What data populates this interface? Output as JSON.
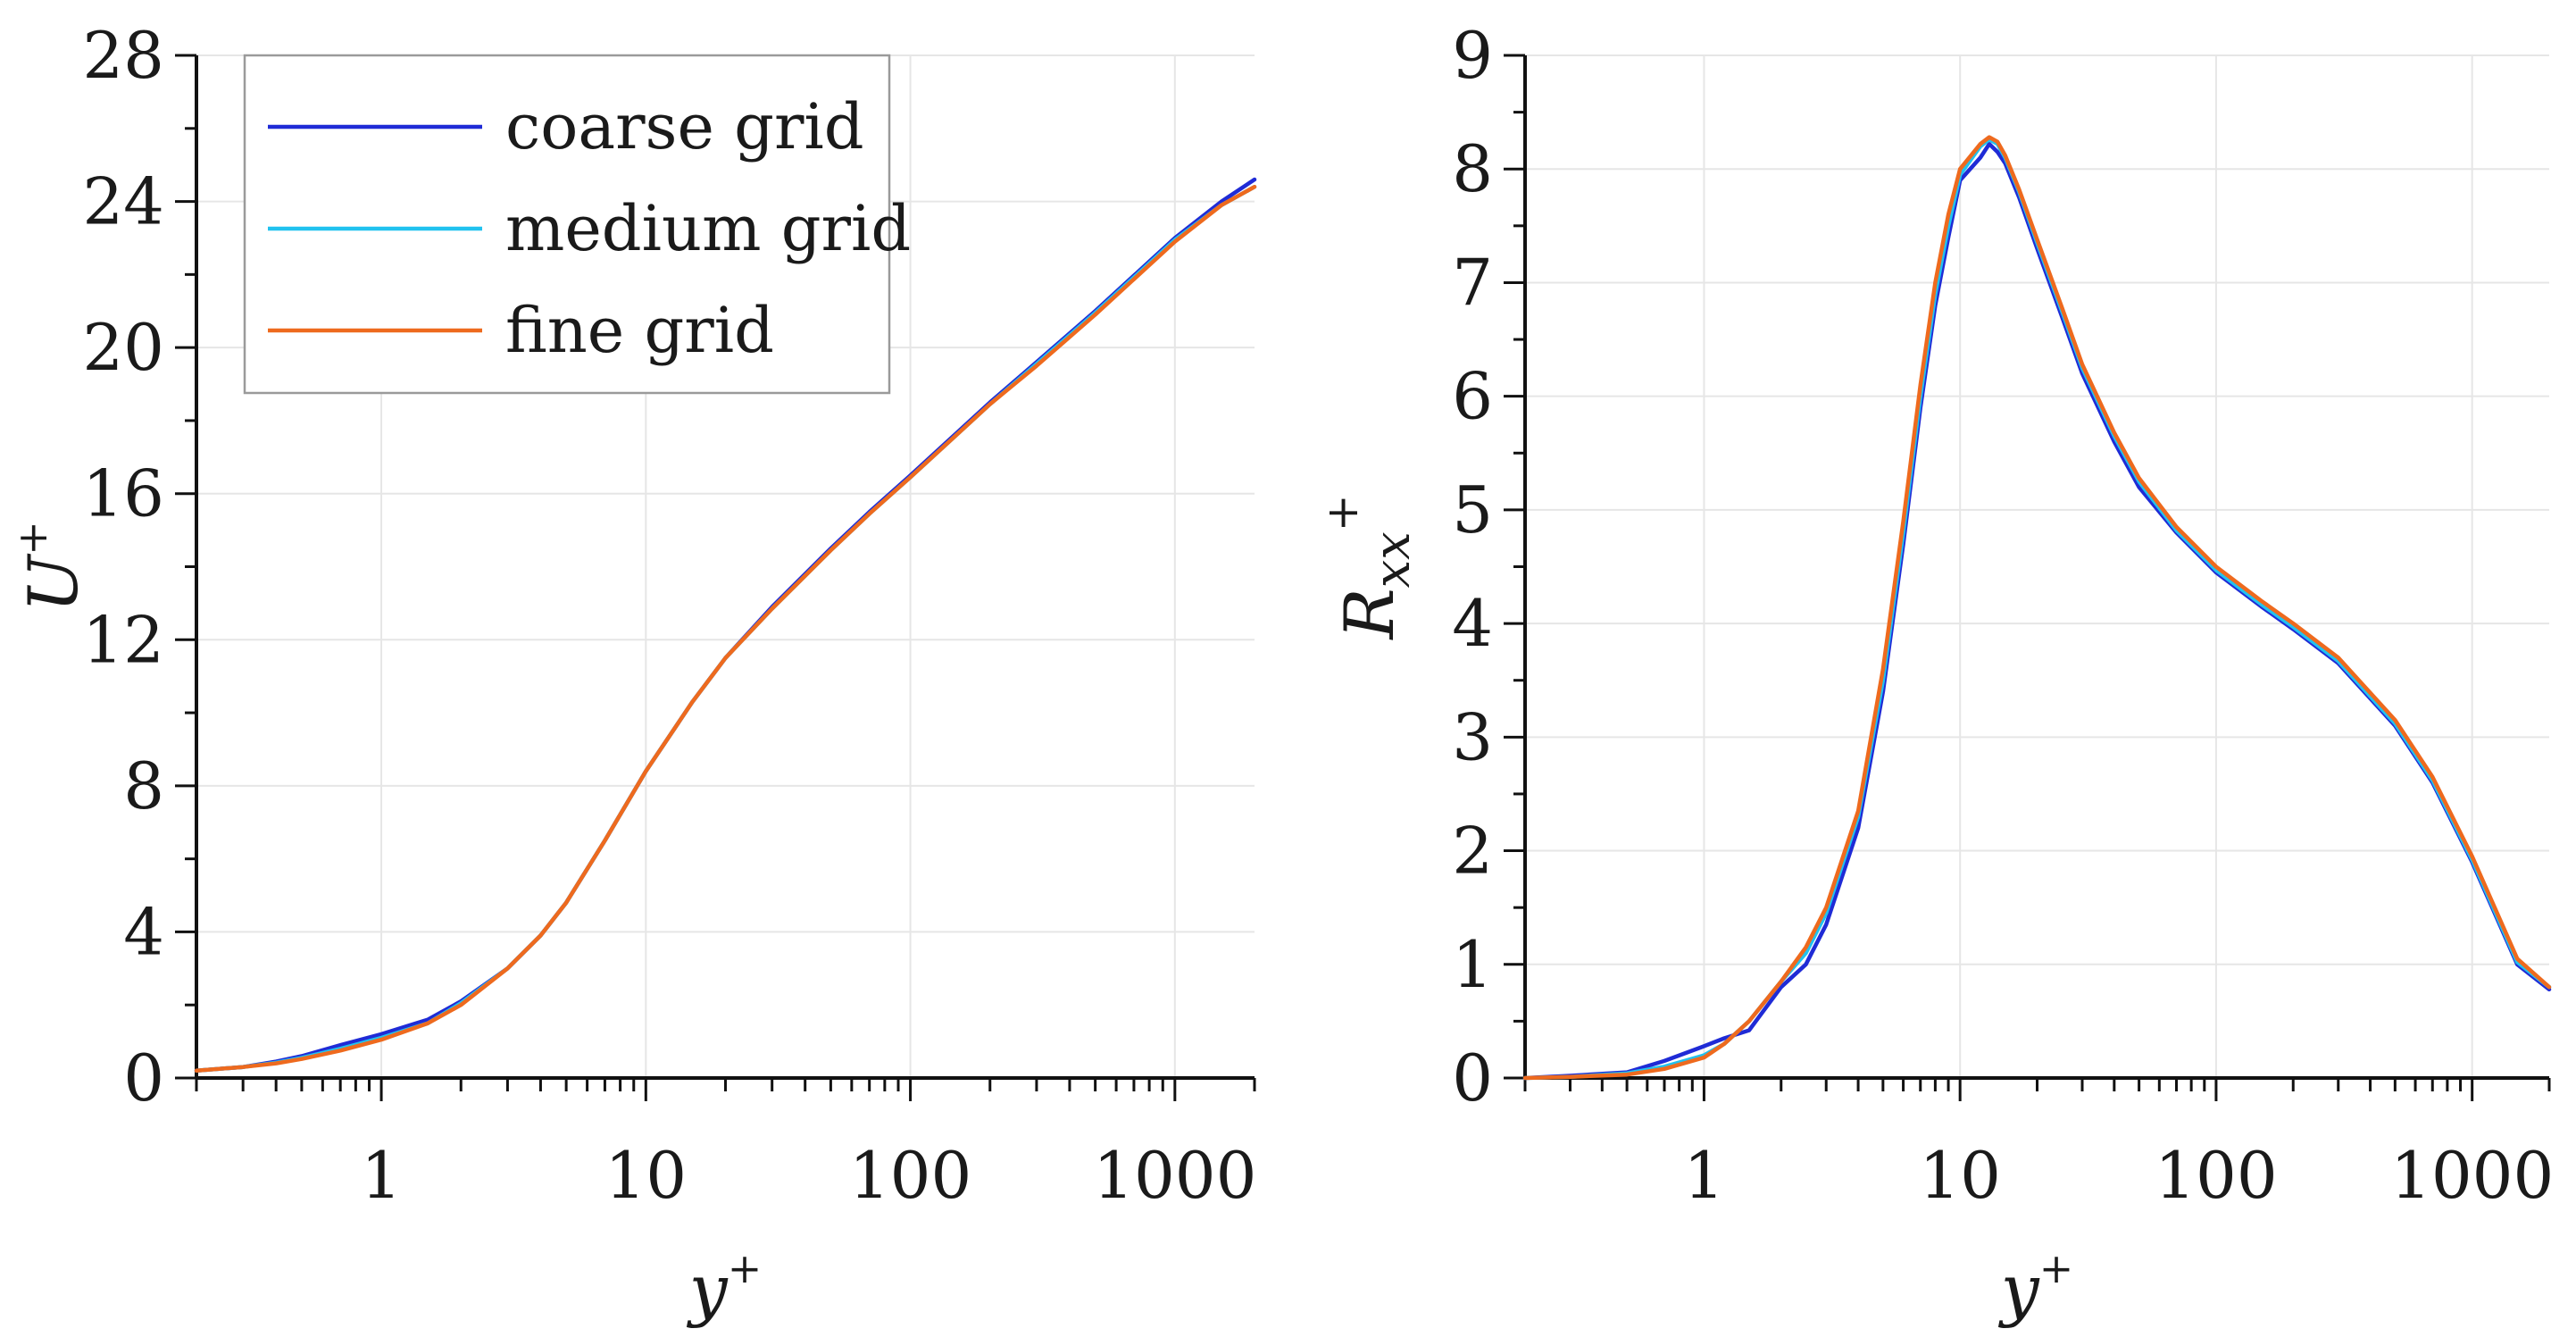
{
  "chart_data": [
    {
      "type": "line",
      "xscale": "log",
      "xlim": [
        0.2,
        2000
      ],
      "ylim": [
        0,
        28
      ],
      "xlabel": "y",
      "xlabel_sup": "+",
      "ylabel": "U",
      "ylabel_sup": "+",
      "x_tick_labels": [
        "1",
        "10",
        "100",
        "1000"
      ],
      "y_ticks": [
        0,
        4,
        8,
        12,
        16,
        20,
        24,
        28
      ],
      "y_tick_labels": [
        "0",
        "4",
        "8",
        "12",
        "16",
        "20",
        "24",
        "28"
      ],
      "legend": {
        "position": "top-left",
        "entries": [
          "coarse grid",
          "medium grid",
          "fine grid"
        ]
      },
      "series": [
        {
          "name": "coarse grid",
          "color": "#1f2bd6",
          "x": [
            0.2,
            0.3,
            0.4,
            0.5,
            0.7,
            1,
            1.5,
            2,
            3,
            4,
            5,
            7,
            10,
            15,
            20,
            30,
            50,
            70,
            100,
            200,
            300,
            500,
            1000,
            1500,
            2000
          ],
          "y": [
            0.2,
            0.3,
            0.45,
            0.6,
            0.9,
            1.2,
            1.6,
            2.1,
            3.0,
            3.9,
            4.8,
            6.5,
            8.4,
            10.3,
            11.5,
            12.9,
            14.5,
            15.5,
            16.5,
            18.5,
            19.6,
            21.0,
            23.0,
            24.0,
            24.6
          ]
        },
        {
          "name": "medium grid",
          "color": "#21c2ef",
          "x": [
            0.2,
            0.3,
            0.4,
            0.5,
            0.7,
            1,
            1.5,
            2,
            3,
            4,
            5,
            7,
            10,
            15,
            20,
            30,
            50,
            70,
            100,
            200,
            300,
            500,
            1000,
            1500,
            2000
          ],
          "y": [
            0.2,
            0.3,
            0.42,
            0.55,
            0.8,
            1.1,
            1.5,
            2.05,
            3.0,
            3.9,
            4.8,
            6.5,
            8.4,
            10.3,
            11.5,
            12.85,
            14.45,
            15.45,
            16.45,
            18.45,
            19.55,
            20.95,
            22.95,
            23.9,
            24.4
          ]
        },
        {
          "name": "fine grid",
          "color": "#ee6a1e",
          "x": [
            0.2,
            0.3,
            0.4,
            0.5,
            0.7,
            1,
            1.5,
            2,
            3,
            4,
            5,
            7,
            10,
            15,
            20,
            30,
            50,
            70,
            100,
            200,
            300,
            500,
            1000,
            1500,
            2000
          ],
          "y": [
            0.2,
            0.3,
            0.4,
            0.52,
            0.75,
            1.05,
            1.5,
            2.0,
            3.0,
            3.9,
            4.8,
            6.5,
            8.4,
            10.3,
            11.5,
            12.85,
            14.45,
            15.45,
            16.45,
            18.45,
            19.5,
            20.9,
            22.9,
            23.9,
            24.4
          ]
        }
      ]
    },
    {
      "type": "line",
      "xscale": "log",
      "xlim": [
        0.2,
        2000
      ],
      "ylim": [
        0,
        9
      ],
      "xlabel": "y",
      "xlabel_sup": "+",
      "ylabel": "R",
      "ylabel_sub": "xx",
      "ylabel_sup": "+",
      "x_tick_labels": [
        "1",
        "10",
        "100",
        "1000"
      ],
      "y_ticks": [
        0,
        1,
        2,
        3,
        4,
        5,
        6,
        7,
        8,
        9
      ],
      "y_tick_labels": [
        "0",
        "1",
        "2",
        "3",
        "4",
        "5",
        "6",
        "7",
        "8",
        "9"
      ],
      "series": [
        {
          "name": "coarse grid",
          "color": "#1f2bd6",
          "x": [
            0.2,
            0.3,
            0.5,
            0.7,
            1,
            1.2,
            1.5,
            2,
            2.5,
            3,
            4,
            5,
            6,
            7,
            8,
            9,
            10,
            12,
            13,
            14,
            15,
            17,
            20,
            25,
            30,
            40,
            50,
            70,
            100,
            150,
            200,
            300,
            500,
            700,
            1000,
            1500,
            2000
          ],
          "y": [
            0,
            0.02,
            0.05,
            0.15,
            0.28,
            0.35,
            0.42,
            0.8,
            1.0,
            1.35,
            2.2,
            3.4,
            4.7,
            5.9,
            6.8,
            7.4,
            7.9,
            8.1,
            8.22,
            8.15,
            8.05,
            7.75,
            7.3,
            6.7,
            6.2,
            5.6,
            5.2,
            4.8,
            4.45,
            4.15,
            3.95,
            3.65,
            3.1,
            2.6,
            1.9,
            1.0,
            0.78
          ]
        },
        {
          "name": "medium grid",
          "color": "#21c2ef",
          "x": [
            0.2,
            0.3,
            0.5,
            0.7,
            1,
            1.2,
            1.5,
            2,
            2.5,
            3,
            4,
            5,
            6,
            7,
            8,
            9,
            10,
            12,
            13,
            14,
            15,
            17,
            20,
            25,
            30,
            40,
            50,
            70,
            100,
            150,
            200,
            300,
            500,
            700,
            1000,
            1500,
            2000
          ],
          "y": [
            0,
            0.01,
            0.04,
            0.1,
            0.2,
            0.3,
            0.5,
            0.85,
            1.1,
            1.45,
            2.3,
            3.5,
            4.8,
            6.0,
            6.9,
            7.5,
            7.95,
            8.2,
            8.26,
            8.22,
            8.1,
            7.8,
            7.35,
            6.75,
            6.25,
            5.65,
            5.25,
            4.82,
            4.47,
            4.17,
            3.97,
            3.67,
            3.12,
            2.62,
            1.92,
            1.02,
            0.8
          ]
        },
        {
          "name": "fine grid",
          "color": "#ee6a1e",
          "x": [
            0.2,
            0.3,
            0.5,
            0.7,
            1,
            1.2,
            1.5,
            2,
            2.5,
            3,
            4,
            5,
            6,
            7,
            8,
            9,
            10,
            12,
            13,
            14,
            15,
            17,
            20,
            25,
            30,
            40,
            50,
            70,
            100,
            150,
            200,
            300,
            500,
            700,
            1000,
            1500,
            2000
          ],
          "y": [
            0,
            0.01,
            0.03,
            0.08,
            0.18,
            0.3,
            0.5,
            0.85,
            1.15,
            1.5,
            2.35,
            3.6,
            4.9,
            6.1,
            7.0,
            7.6,
            8.0,
            8.22,
            8.28,
            8.24,
            8.12,
            7.82,
            7.38,
            6.78,
            6.28,
            5.68,
            5.28,
            4.85,
            4.5,
            4.2,
            4.0,
            3.7,
            3.15,
            2.65,
            1.95,
            1.05,
            0.8
          ]
        }
      ]
    }
  ]
}
